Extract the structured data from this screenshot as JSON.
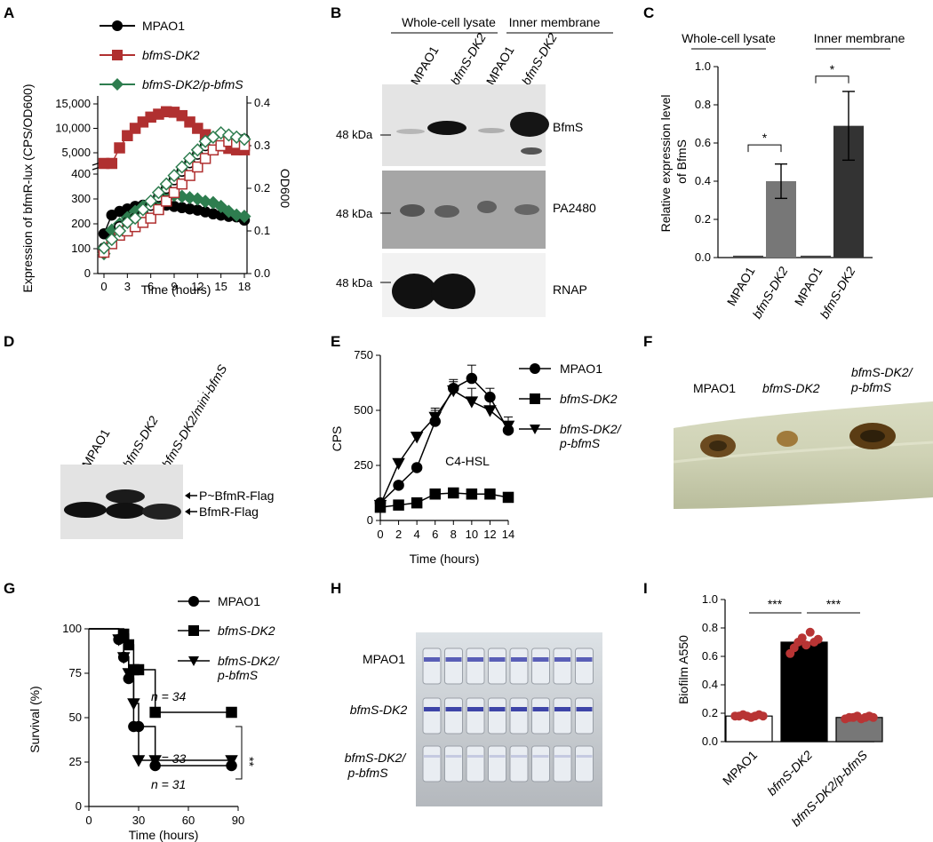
{
  "panels": {
    "A": "A",
    "B": "B",
    "C": "C",
    "D": "D",
    "E": "E",
    "F": "F",
    "G": "G",
    "H": "H",
    "I": "I"
  },
  "strains": {
    "wt": "MPAO1",
    "dk2": "bfmS-DK2",
    "comp": "bfmS-DK2/p-bfmS",
    "mini": "bfmS-DK2/mini-bfmS"
  },
  "colors": {
    "wt": "#000000",
    "dk2": "#b03030",
    "comp": "#2e7d4f",
    "bar_dark": "#333333",
    "bar_mid": "#777777",
    "dot": "#b83434"
  },
  "A": {
    "ylabel_left": "Expression of bfmR-lux (CPS/OD600)",
    "ylabel_right": "OD600",
    "xlabel": "Time (hours)"
  },
  "B": {
    "header_wcl": "Whole-cell lysate",
    "header_im": "Inner membrane",
    "marker": "48 kDa",
    "blots": [
      "BfmS",
      "PA2480",
      "RNAP"
    ]
  },
  "C": {
    "header_wcl": "Whole-cell lysate",
    "header_im": "Inner membrane",
    "ylabel": "Relative expression level of BfmS",
    "sig": "*"
  },
  "D": {
    "arrow1": "P~BfmR-Flag",
    "arrow2": "BfmR-Flag"
  },
  "E": {
    "ylabel": "CPS",
    "xlabel": "Time (hours)",
    "annotation": "C4-HSL"
  },
  "F": {
    "labels": [
      "MPAO1",
      "bfmS-DK2",
      "bfmS-DK2/ p-bfmS"
    ]
  },
  "G": {
    "ylabel": "Survival (%)",
    "xlabel": "Time (hours)",
    "n_labels": [
      "n = 34",
      "n = 33",
      "n = 31"
    ],
    "sig": "**"
  },
  "H": {
    "rows": [
      "MPAO1",
      "bfmS-DK2",
      "bfmS-DK2/ p-bfmS"
    ]
  },
  "I": {
    "ylabel": "Biofilm A550",
    "sig": "***"
  },
  "chart_data": [
    {
      "panel": "A",
      "type": "line",
      "xlabel": "Time (hours)",
      "ylabel": "Expression of bfmR-lux (CPS/OD600)",
      "y2label": "OD600",
      "x": [
        0,
        1,
        2,
        3,
        4,
        5,
        6,
        7,
        8,
        9,
        10,
        11,
        12,
        13,
        14,
        15,
        16,
        17,
        18
      ],
      "xlim": [
        0,
        18
      ],
      "xticks": [
        0,
        3,
        6,
        9,
        12,
        15,
        18
      ],
      "ylim_broken": {
        "lower": [
          0,
          400
        ],
        "upper": [
          5000,
          15000
        ]
      },
      "y2lim": [
        0,
        0.4
      ],
      "series": [
        {
          "name": "MPAO1",
          "kind": "expression",
          "values": [
            160,
            235,
            250,
            260,
            270,
            275,
            280,
            278,
            275,
            270,
            265,
            260,
            255,
            248,
            240,
            235,
            230,
            228,
            215
          ]
        },
        {
          "name": "bfmS-DK2",
          "kind": "expression",
          "values": [
            3500,
            3800,
            6000,
            8500,
            10000,
            11300,
            12300,
            12900,
            13400,
            13300,
            12600,
            11300,
            10000,
            8700,
            7400,
            6400,
            5900,
            5600,
            5600
          ]
        },
        {
          "name": "bfmS-DK2/p-bfmS",
          "kind": "expression",
          "values": [
            80,
            175,
            200,
            225,
            250,
            270,
            290,
            300,
            310,
            315,
            310,
            305,
            300,
            290,
            285,
            270,
            250,
            235,
            230
          ]
        },
        {
          "name": "MPAO1",
          "kind": "OD600",
          "values": [
            0.06,
            0.08,
            0.11,
            0.12,
            0.13,
            0.14,
            0.16,
            0.18,
            0.2,
            0.22,
            0.24,
            0.26,
            0.28,
            0.3,
            0.31,
            0.315,
            0.32,
            0.318,
            0.315
          ]
        },
        {
          "name": "bfmS-DK2",
          "kind": "OD600",
          "values": [
            0.05,
            0.07,
            0.09,
            0.1,
            0.11,
            0.12,
            0.13,
            0.15,
            0.17,
            0.19,
            0.21,
            0.23,
            0.25,
            0.27,
            0.29,
            0.3,
            0.31,
            0.305,
            0.3
          ]
        },
        {
          "name": "bfmS-DK2/p-bfmS",
          "kind": "OD600",
          "values": [
            0.06,
            0.08,
            0.1,
            0.12,
            0.13,
            0.15,
            0.17,
            0.19,
            0.21,
            0.23,
            0.25,
            0.27,
            0.29,
            0.31,
            0.32,
            0.33,
            0.325,
            0.32,
            0.315
          ]
        }
      ]
    },
    {
      "panel": "C",
      "type": "bar",
      "ylabel": "Relative expression level of BfmS",
      "categories": [
        "MPAO1",
        "bfmS-DK2",
        "MPAO1",
        "bfmS-DK2"
      ],
      "values": [
        0.01,
        0.4,
        0.01,
        0.69
      ],
      "errors": [
        0.0,
        0.09,
        0.0,
        0.18
      ],
      "ylim": [
        0,
        1.0
      ],
      "yticks": [
        0,
        0.2,
        0.4,
        0.6,
        0.8,
        1.0
      ]
    },
    {
      "panel": "E",
      "type": "line",
      "xlabel": "Time (hours)",
      "ylabel": "CPS",
      "x": [
        0,
        2,
        4,
        6,
        8,
        10,
        12,
        14
      ],
      "xlim": [
        0,
        14
      ],
      "ylim": [
        0,
        750
      ],
      "yticks": [
        0,
        250,
        500,
        750
      ],
      "xticks": [
        0,
        2,
        4,
        6,
        8,
        10,
        12,
        14
      ],
      "series": [
        {
          "name": "MPAO1",
          "values": [
            80,
            160,
            240,
            450,
            600,
            645,
            560,
            410
          ],
          "errors": [
            0,
            0,
            0,
            50,
            40,
            60,
            40,
            30
          ]
        },
        {
          "name": "bfmS-DK2",
          "values": [
            60,
            70,
            80,
            120,
            125,
            120,
            120,
            105
          ],
          "errors": [
            0,
            0,
            0,
            0,
            0,
            0,
            0,
            0
          ]
        },
        {
          "name": "bfmS-DK2/p-bfmS",
          "values": [
            70,
            260,
            380,
            470,
            590,
            540,
            500,
            430
          ],
          "errors": [
            0,
            0,
            20,
            40,
            40,
            60,
            50,
            40
          ]
        }
      ]
    },
    {
      "panel": "G",
      "type": "line",
      "xlabel": "Time (hours)",
      "ylabel": "Survival (%)",
      "xlim": [
        0,
        90
      ],
      "ylim": [
        0,
        100
      ],
      "xticks": [
        0,
        30,
        60,
        90
      ],
      "yticks": [
        0,
        25,
        50,
        75,
        100
      ],
      "series": [
        {
          "name": "MPAO1",
          "x": [
            0,
            18,
            21,
            24,
            27,
            30,
            40,
            86
          ],
          "values": [
            100,
            94,
            84,
            72,
            45,
            45,
            23,
            23
          ]
        },
        {
          "name": "bfmS-DK2",
          "x": [
            0,
            21,
            24,
            27,
            30,
            40,
            86
          ],
          "values": [
            100,
            97,
            91,
            77,
            77,
            53,
            53
          ]
        },
        {
          "name": "bfmS-DK2/p-bfmS",
          "x": [
            0,
            18,
            21,
            24,
            27,
            30,
            40,
            86
          ],
          "values": [
            100,
            94,
            84,
            75,
            58,
            26,
            26,
            26
          ]
        }
      ]
    },
    {
      "panel": "I",
      "type": "bar",
      "ylabel": "Biofilm A550",
      "categories": [
        "MPAO1",
        "bfmS-DK2",
        "bfmS-DK2/p-bfmS"
      ],
      "values": [
        0.18,
        0.7,
        0.17
      ],
      "points": [
        [
          0.18,
          0.18,
          0.19,
          0.18,
          0.17,
          0.18,
          0.19,
          0.18
        ],
        [
          0.62,
          0.66,
          0.7,
          0.73,
          0.68,
          0.77,
          0.7,
          0.72
        ],
        [
          0.16,
          0.17,
          0.17,
          0.18,
          0.16,
          0.17,
          0.18,
          0.17
        ]
      ],
      "ylim": [
        0,
        1.0
      ],
      "yticks": [
        0,
        0.2,
        0.4,
        0.6,
        0.8,
        1.0
      ]
    }
  ]
}
